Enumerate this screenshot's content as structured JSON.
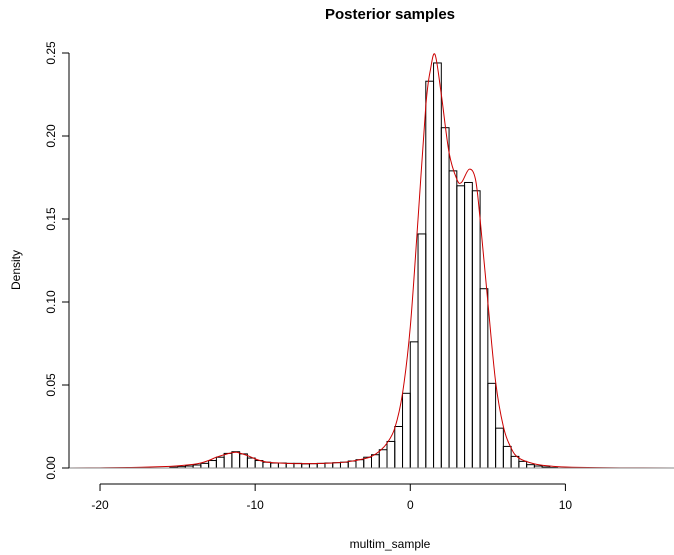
{
  "chart_data": {
    "type": "bar",
    "title": "Posterior samples",
    "xlabel": "multim_sample",
    "ylabel": "Density",
    "xlim": [
      -22,
      17
    ],
    "ylim": [
      0,
      0.25
    ],
    "x_ticks": [
      -20,
      -10,
      0,
      10
    ],
    "x_tick_labels": [
      "-20",
      "-10",
      "0",
      "10"
    ],
    "y_ticks": [
      0,
      0.05,
      0.1,
      0.15,
      0.2,
      0.25
    ],
    "y_tick_labels": [
      "0.00",
      "0.05",
      "0.10",
      "0.15",
      "0.20",
      "0.25"
    ],
    "bin_width": 0.5,
    "histogram": {
      "series_color": "#000000",
      "bin_starts": [
        -15.5,
        -15,
        -14.5,
        -14,
        -13.5,
        -13,
        -12.5,
        -12,
        -11.5,
        -11,
        -10.5,
        -10,
        -9.5,
        -9,
        -8.5,
        -8,
        -7.5,
        -7,
        -6.5,
        -6,
        -5.5,
        -5,
        -4.5,
        -4,
        -3.5,
        -3,
        -2.5,
        -2,
        -1.5,
        -1,
        -0.5,
        0,
        0.5,
        1,
        1.5,
        2,
        2.5,
        3,
        3.5,
        4,
        4.5,
        5,
        5.5,
        6,
        6.5,
        7,
        7.5,
        8,
        8.5,
        9
      ],
      "densities": [
        0.0005,
        0.0008,
        0.0012,
        0.0018,
        0.0028,
        0.0045,
        0.0065,
        0.0088,
        0.0098,
        0.0085,
        0.006,
        0.0045,
        0.0035,
        0.003,
        0.003,
        0.0028,
        0.0028,
        0.0025,
        0.0026,
        0.0028,
        0.003,
        0.0032,
        0.0035,
        0.0042,
        0.005,
        0.0065,
        0.008,
        0.011,
        0.016,
        0.025,
        0.045,
        0.076,
        0.141,
        0.233,
        0.244,
        0.205,
        0.179,
        0.17,
        0.172,
        0.167,
        0.108,
        0.051,
        0.024,
        0.013,
        0.007,
        0.004,
        0.002,
        0.0012,
        0.0006,
        0.0003
      ]
    },
    "density_curve": {
      "color": "#cc0000",
      "x": [
        -22,
        -20,
        -18,
        -16,
        -15,
        -14,
        -13.5,
        -13,
        -12.5,
        -12,
        -11.5,
        -11.2,
        -11,
        -10.5,
        -10,
        -9.5,
        -9,
        -8,
        -7,
        -6,
        -5,
        -4,
        -3,
        -2.5,
        -2,
        -1.5,
        -1,
        -0.5,
        0,
        0.5,
        1,
        1.3,
        1.6,
        2,
        2.5,
        3,
        3.3,
        3.8,
        4.2,
        4.5,
        5,
        5.5,
        6,
        6.5,
        7,
        8,
        9,
        10,
        12,
        15,
        17
      ],
      "y": [
        0,
        0.0001,
        0.0003,
        0.0008,
        0.0013,
        0.0022,
        0.003,
        0.0045,
        0.0065,
        0.008,
        0.0092,
        0.0095,
        0.009,
        0.0075,
        0.0055,
        0.004,
        0.0033,
        0.0028,
        0.0026,
        0.0027,
        0.003,
        0.0038,
        0.0055,
        0.007,
        0.01,
        0.015,
        0.024,
        0.045,
        0.085,
        0.15,
        0.218,
        0.24,
        0.249,
        0.225,
        0.19,
        0.174,
        0.172,
        0.18,
        0.174,
        0.15,
        0.1,
        0.052,
        0.025,
        0.012,
        0.006,
        0.0025,
        0.0012,
        0.0006,
        0.0002,
        5e-05,
        0
      ]
    },
    "grid": false,
    "legend": "none"
  }
}
